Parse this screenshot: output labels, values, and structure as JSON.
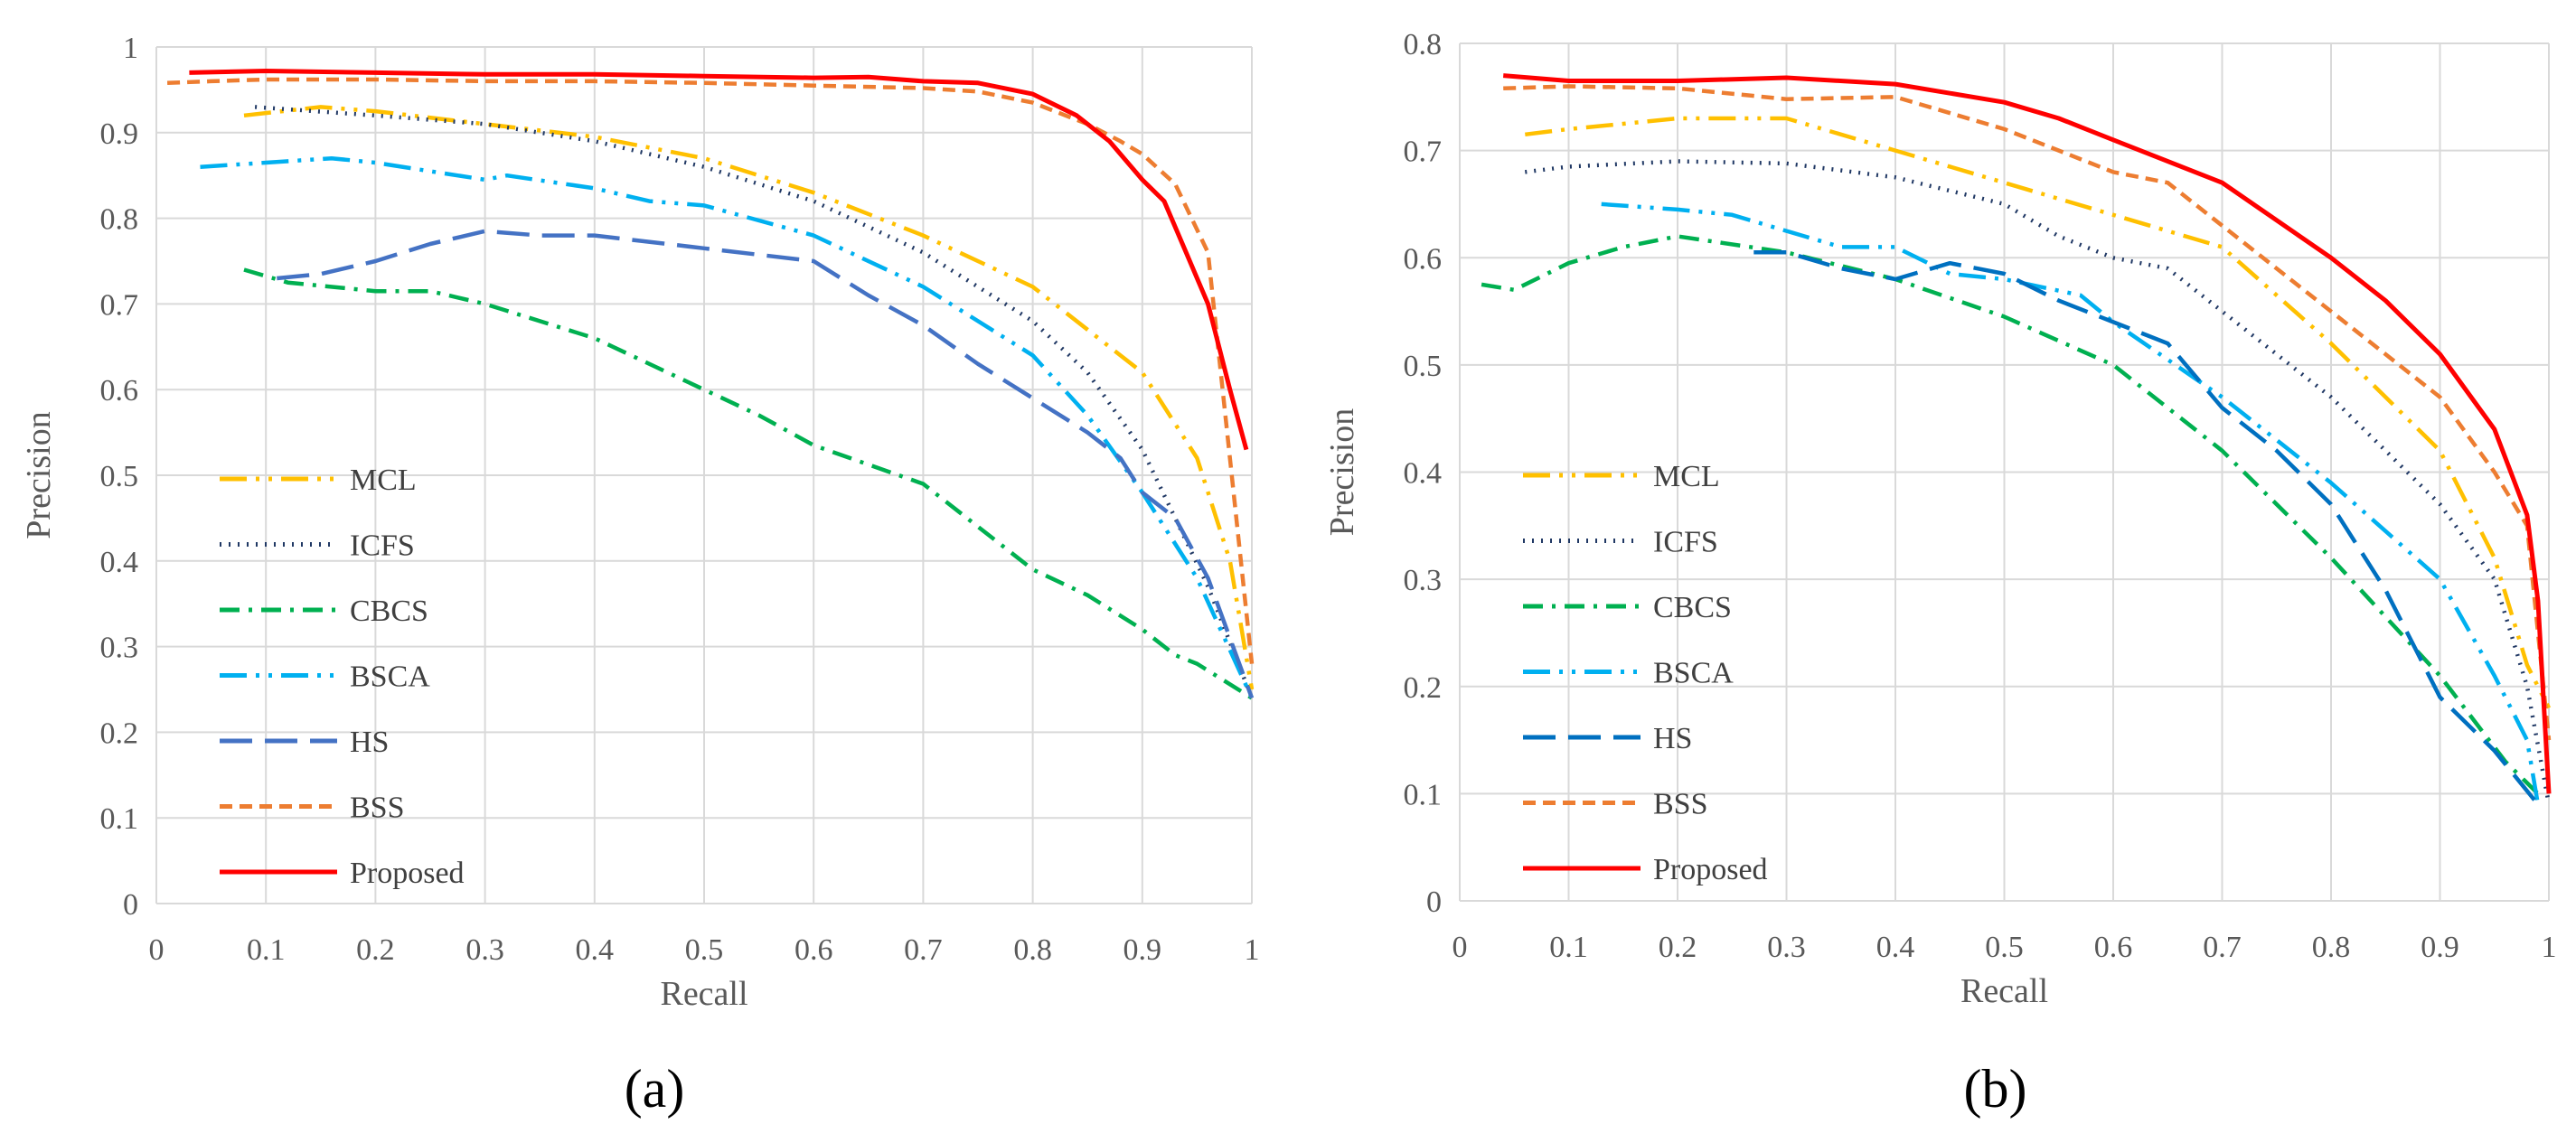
{
  "chart_data": [
    {
      "type": "line",
      "panel_label": "(a)",
      "xlabel": "Recall",
      "ylabel": "Precision",
      "xlim": [
        0,
        1
      ],
      "ylim": [
        0,
        1
      ],
      "xticks": [
        0,
        0.1,
        0.2,
        0.3,
        0.4,
        0.5,
        0.6,
        0.7,
        0.8,
        0.9,
        1
      ],
      "xtick_labels": [
        "0",
        "0.1",
        "0.2",
        "0.3",
        "0.4",
        "0.5",
        "0.6",
        "0.7",
        "0.8",
        "0.9",
        "1"
      ],
      "yticks": [
        0,
        0.1,
        0.2,
        0.3,
        0.4,
        0.5,
        0.6,
        0.7,
        0.8,
        0.9,
        1
      ],
      "ytick_labels": [
        "0",
        "0.1",
        "0.2",
        "0.3",
        "0.4",
        "0.5",
        "0.6",
        "0.7",
        "0.8",
        "0.9",
        "1"
      ],
      "grid": true,
      "legend_position": "lower-left",
      "series": [
        {
          "name": "MCL",
          "color": "#FFC000",
          "dash": "long-dash-dot-dot",
          "x": [
            0.08,
            0.15,
            0.2,
            0.3,
            0.4,
            0.5,
            0.6,
            0.7,
            0.8,
            0.9,
            0.95,
            0.98,
            1.0
          ],
          "y": [
            0.92,
            0.93,
            0.925,
            0.91,
            0.895,
            0.87,
            0.83,
            0.78,
            0.72,
            0.62,
            0.52,
            0.4,
            0.25
          ]
        },
        {
          "name": "ICFS",
          "color": "#203864",
          "dash": "dotted",
          "x": [
            0.09,
            0.2,
            0.3,
            0.4,
            0.5,
            0.6,
            0.7,
            0.8,
            0.85,
            0.9,
            0.93,
            0.96,
            1.0
          ],
          "y": [
            0.93,
            0.92,
            0.91,
            0.89,
            0.86,
            0.82,
            0.76,
            0.68,
            0.62,
            0.53,
            0.45,
            0.37,
            0.24
          ]
        },
        {
          "name": "CBCS",
          "color": "#00B050",
          "dash": "dash-dot",
          "x": [
            0.08,
            0.12,
            0.2,
            0.25,
            0.3,
            0.4,
            0.5,
            0.55,
            0.6,
            0.7,
            0.8,
            0.85,
            0.9,
            0.93,
            0.95,
            1.0
          ],
          "y": [
            0.74,
            0.725,
            0.715,
            0.715,
            0.7,
            0.66,
            0.6,
            0.57,
            0.535,
            0.49,
            0.39,
            0.36,
            0.32,
            0.29,
            0.28,
            0.24
          ]
        },
        {
          "name": "BSCA",
          "color": "#00B0F0",
          "dash": "long-dash-dot-dot",
          "x": [
            0.04,
            0.1,
            0.16,
            0.2,
            0.25,
            0.3,
            0.32,
            0.4,
            0.45,
            0.5,
            0.6,
            0.7,
            0.8,
            0.85,
            0.9,
            0.95,
            1.0
          ],
          "y": [
            0.86,
            0.865,
            0.87,
            0.865,
            0.855,
            0.845,
            0.85,
            0.835,
            0.82,
            0.815,
            0.78,
            0.72,
            0.64,
            0.57,
            0.48,
            0.38,
            0.24
          ]
        },
        {
          "name": "HS",
          "color": "#4472C4",
          "dash": "long-dash",
          "x": [
            0.11,
            0.15,
            0.2,
            0.25,
            0.3,
            0.35,
            0.4,
            0.5,
            0.6,
            0.65,
            0.7,
            0.75,
            0.8,
            0.85,
            0.88,
            0.9,
            0.93,
            0.96,
            1.0
          ],
          "y": [
            0.73,
            0.735,
            0.75,
            0.77,
            0.785,
            0.78,
            0.78,
            0.765,
            0.75,
            0.71,
            0.675,
            0.63,
            0.59,
            0.55,
            0.52,
            0.48,
            0.45,
            0.38,
            0.24
          ]
        },
        {
          "name": "BSS",
          "color": "#ED7D31",
          "dash": "dashed",
          "x": [
            0.01,
            0.05,
            0.1,
            0.2,
            0.3,
            0.4,
            0.5,
            0.6,
            0.7,
            0.75,
            0.8,
            0.85,
            0.88,
            0.9,
            0.93,
            0.96,
            1.0
          ],
          "y": [
            0.958,
            0.96,
            0.962,
            0.962,
            0.96,
            0.96,
            0.958,
            0.955,
            0.952,
            0.948,
            0.935,
            0.91,
            0.89,
            0.875,
            0.84,
            0.76,
            0.28
          ]
        },
        {
          "name": "Proposed",
          "color": "#FF0000",
          "dash": "solid",
          "x": [
            0.03,
            0.1,
            0.2,
            0.3,
            0.4,
            0.5,
            0.6,
            0.65,
            0.7,
            0.75,
            0.8,
            0.84,
            0.87,
            0.9,
            0.92,
            0.94,
            0.96,
            0.98,
            0.995
          ],
          "y": [
            0.97,
            0.972,
            0.97,
            0.968,
            0.968,
            0.966,
            0.964,
            0.965,
            0.96,
            0.958,
            0.945,
            0.92,
            0.89,
            0.845,
            0.82,
            0.76,
            0.7,
            0.6,
            0.53
          ]
        }
      ]
    },
    {
      "type": "line",
      "panel_label": "(b)",
      "xlabel": "Recall",
      "ylabel": "Precision",
      "xlim": [
        0,
        1
      ],
      "ylim": [
        0,
        0.8
      ],
      "xticks": [
        0,
        0.1,
        0.2,
        0.3,
        0.4,
        0.5,
        0.6,
        0.7,
        0.8,
        0.9,
        1
      ],
      "xtick_labels": [
        "0",
        "0.1",
        "0.2",
        "0.3",
        "0.4",
        "0.5",
        "0.6",
        "0.7",
        "0.8",
        "0.9",
        "1"
      ],
      "yticks": [
        0,
        0.1,
        0.2,
        0.3,
        0.4,
        0.5,
        0.6,
        0.7,
        0.8
      ],
      "ytick_labels": [
        "0",
        "0.1",
        "0.2",
        "0.3",
        "0.4",
        "0.5",
        "0.6",
        "0.7",
        "0.8"
      ],
      "grid": true,
      "legend_position": "lower-left",
      "series": [
        {
          "name": "MCL",
          "color": "#FFC000",
          "dash": "long-dash-dot-dot",
          "x": [
            0.06,
            0.1,
            0.15,
            0.2,
            0.3,
            0.4,
            0.5,
            0.6,
            0.7,
            0.8,
            0.85,
            0.9,
            0.95,
            0.98,
            1.0
          ],
          "y": [
            0.715,
            0.72,
            0.725,
            0.73,
            0.73,
            0.7,
            0.67,
            0.64,
            0.61,
            0.52,
            0.47,
            0.42,
            0.32,
            0.22,
            0.18
          ]
        },
        {
          "name": "ICFS",
          "color": "#203864",
          "dash": "dotted",
          "x": [
            0.06,
            0.1,
            0.2,
            0.3,
            0.4,
            0.5,
            0.55,
            0.6,
            0.65,
            0.7,
            0.8,
            0.9,
            0.95,
            0.98,
            1.0
          ],
          "y": [
            0.68,
            0.685,
            0.69,
            0.688,
            0.675,
            0.65,
            0.62,
            0.6,
            0.59,
            0.55,
            0.47,
            0.37,
            0.3,
            0.2,
            0.09
          ]
        },
        {
          "name": "CBCS",
          "color": "#00B050",
          "dash": "dash-dot",
          "x": [
            0.02,
            0.05,
            0.1,
            0.15,
            0.2,
            0.3,
            0.4,
            0.5,
            0.6,
            0.7,
            0.8,
            0.9,
            0.96,
            0.99
          ],
          "y": [
            0.575,
            0.57,
            0.595,
            0.61,
            0.62,
            0.605,
            0.58,
            0.545,
            0.5,
            0.42,
            0.32,
            0.21,
            0.13,
            0.1
          ]
        },
        {
          "name": "BSCA",
          "color": "#00B0F0",
          "dash": "long-dash-dot-dot",
          "x": [
            0.13,
            0.2,
            0.25,
            0.3,
            0.35,
            0.4,
            0.45,
            0.5,
            0.57,
            0.6,
            0.7,
            0.8,
            0.9,
            0.95,
            0.98,
            0.99
          ],
          "y": [
            0.65,
            0.645,
            0.64,
            0.625,
            0.61,
            0.61,
            0.585,
            0.58,
            0.565,
            0.54,
            0.47,
            0.39,
            0.3,
            0.21,
            0.15,
            0.09
          ]
        },
        {
          "name": "HS",
          "color": "#0070C0",
          "dash": "long-dash",
          "x": [
            0.27,
            0.3,
            0.35,
            0.4,
            0.45,
            0.5,
            0.55,
            0.6,
            0.65,
            0.7,
            0.75,
            0.8,
            0.85,
            0.9,
            0.95,
            0.99
          ],
          "y": [
            0.605,
            0.605,
            0.59,
            0.58,
            0.595,
            0.585,
            0.56,
            0.54,
            0.52,
            0.46,
            0.42,
            0.37,
            0.29,
            0.19,
            0.14,
            0.09
          ]
        },
        {
          "name": "BSS",
          "color": "#ED7D31",
          "dash": "dashed",
          "x": [
            0.04,
            0.1,
            0.2,
            0.3,
            0.4,
            0.5,
            0.6,
            0.65,
            0.7,
            0.8,
            0.9,
            0.95,
            0.98,
            1.0
          ],
          "y": [
            0.758,
            0.76,
            0.758,
            0.748,
            0.75,
            0.72,
            0.68,
            0.67,
            0.63,
            0.55,
            0.47,
            0.4,
            0.35,
            0.15
          ]
        },
        {
          "name": "Proposed",
          "color": "#FF0000",
          "dash": "solid",
          "x": [
            0.04,
            0.1,
            0.2,
            0.3,
            0.4,
            0.5,
            0.55,
            0.6,
            0.7,
            0.8,
            0.85,
            0.9,
            0.95,
            0.98,
            0.99,
            1.0
          ],
          "y": [
            0.77,
            0.765,
            0.765,
            0.768,
            0.762,
            0.745,
            0.73,
            0.71,
            0.67,
            0.6,
            0.56,
            0.51,
            0.44,
            0.36,
            0.28,
            0.1
          ]
        }
      ]
    }
  ]
}
